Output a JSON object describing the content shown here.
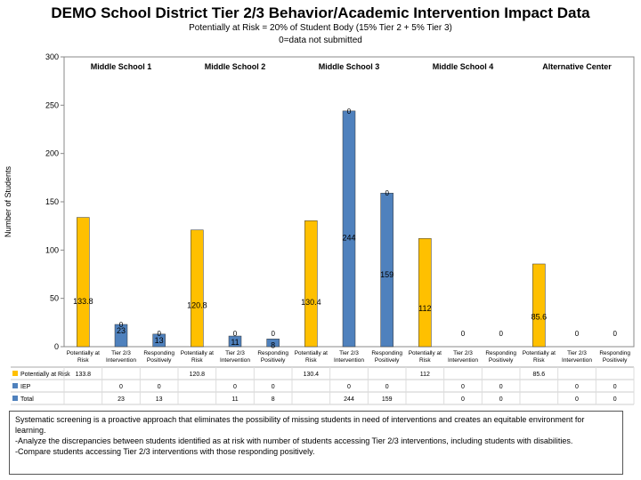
{
  "chart_data": {
    "type": "bar",
    "title": "DEMO School District Tier 2/3 Behavior/Academic Intervention Impact Data",
    "subtitle_1": "Potentially at Risk = 20% of Student Body (15% Tier 2 + 5% Tier 3)",
    "subtitle_2": "0=data not submitted",
    "ylabel": "Number of Students",
    "ylim": [
      0,
      300
    ],
    "yticks": [
      "0",
      "50",
      "100",
      "150",
      "200",
      "250",
      "300"
    ],
    "groups": [
      "Middle School 1",
      "Middle School 2",
      "Middle School 3",
      "Middle School 4",
      "Alternative Center"
    ],
    "categories": [
      "Potentially at Risk",
      "Tier 2/3 Intervention",
      "Responding Positively",
      "Potentially at Risk",
      "Tier 2/3 Intervention",
      "Responding Positively",
      "Potentially at Risk",
      "Tier 2/3 Intervention",
      "Responding Positively",
      "Potentially at Risk",
      "Tier 2/3 Intervention",
      "Responding Positively",
      "Potentially at Risk",
      "Tier 2/3 Intervention",
      "Responding Positively"
    ],
    "series": [
      {
        "name": "Potentially at Risk",
        "color": "#FFC000",
        "values": [
          133.8,
          null,
          null,
          120.8,
          null,
          null,
          130.4,
          null,
          null,
          112,
          null,
          null,
          85.6,
          null,
          null
        ],
        "table_values": [
          "133.8",
          "",
          "",
          "120.8",
          "",
          "",
          "130.4",
          "",
          "",
          "112",
          "",
          "",
          "85.6",
          "",
          ""
        ]
      },
      {
        "name": "IEP",
        "color": "#4F81BD",
        "values": [
          null,
          0,
          0,
          null,
          0,
          0,
          null,
          0,
          0,
          null,
          0,
          0,
          null,
          0,
          0
        ],
        "table_values": [
          "",
          "0",
          "0",
          "",
          "0",
          "0",
          "",
          "0",
          "0",
          "",
          "0",
          "0",
          "",
          "0",
          "0"
        ]
      },
      {
        "name": "Total",
        "color": "#4F81BD",
        "values": [
          null,
          23,
          13,
          null,
          11,
          8,
          null,
          244,
          159,
          null,
          0,
          0,
          null,
          0,
          0
        ],
        "table_values": [
          "",
          "23",
          "13",
          "",
          "11",
          "8",
          "",
          "244",
          "159",
          "",
          "0",
          "0",
          "",
          "0",
          "0"
        ]
      }
    ]
  },
  "notes": {
    "line_1": "Systematic screening is a proactive approach that eliminates the possibility of missing students in need of interventions and creates an equitable environment for",
    "line_2": "learning.",
    "line_3": "-Analyze the discrepancies between students identified as at risk with number of students accessing Tier 2/3 interventions, including students with disabilities.",
    "line_4": "-Compare students accessing Tier 2/3 interventions with those responding positively."
  }
}
